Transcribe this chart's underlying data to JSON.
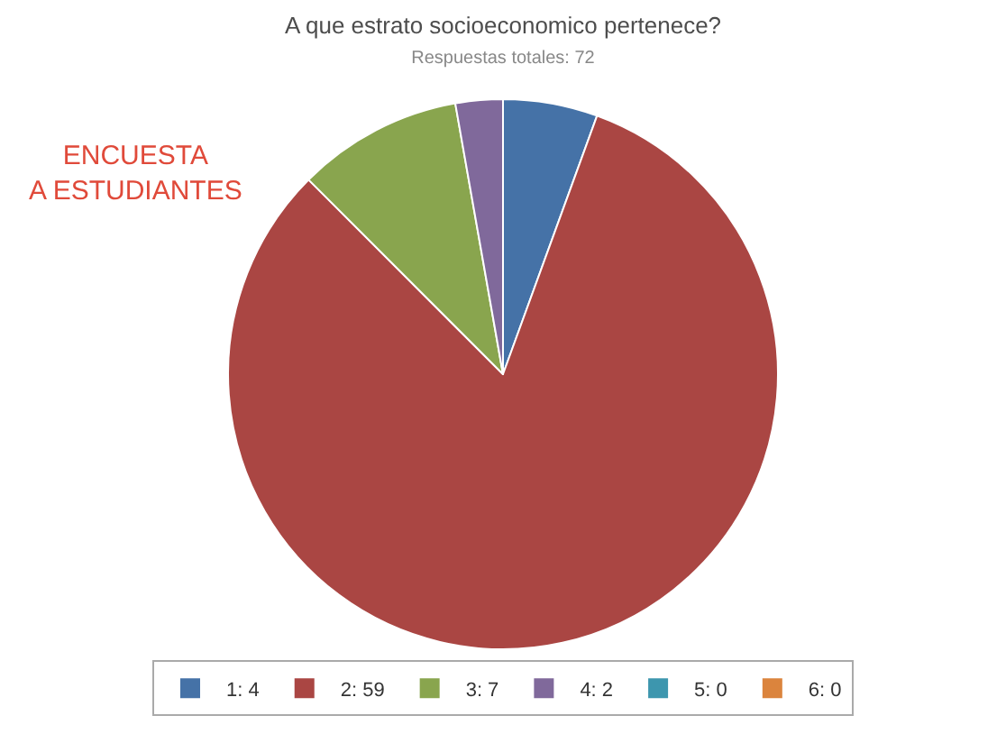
{
  "chart_data": {
    "type": "pie",
    "title": "A que estrato socioeconomico pertenece?",
    "subtitle": "Respuestas totales: 72",
    "categories": [
      "1: 4",
      "2: 59",
      "3: 7",
      "4: 2",
      "5: 0",
      "6: 0"
    ],
    "values": [
      4,
      59,
      7,
      2,
      0,
      0
    ],
    "colors": [
      "#4572a7",
      "#aa4643",
      "#89a54e",
      "#80699b",
      "#3d96ae",
      "#db843d"
    ],
    "annotations": [
      "ENCUESTA\nA ESTUDIANTES"
    ],
    "legend": "bottom"
  }
}
